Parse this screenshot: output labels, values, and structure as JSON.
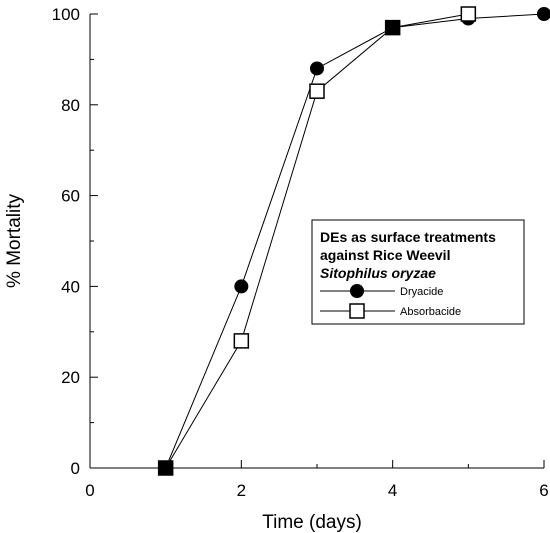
{
  "chart_data": {
    "type": "line",
    "xlabel": "Time (days)",
    "ylabel": "% Mortality",
    "xlim": [
      0,
      6
    ],
    "ylim": [
      0,
      100
    ],
    "x_ticks": [
      0,
      2,
      4,
      6
    ],
    "y_ticks": [
      0,
      20,
      40,
      60,
      80,
      100
    ],
    "grid": false,
    "legend": {
      "placement": "right-middle",
      "title_lines": [
        "DEs as surface treatments",
        "against Rice Weevil"
      ],
      "title_italic": "Sitophilus oryzae"
    },
    "series": [
      {
        "name": "Dryacide",
        "marker": "filled-circle",
        "color": "#000000",
        "points": [
          {
            "x": 1,
            "y": 0
          },
          {
            "x": 2,
            "y": 40
          },
          {
            "x": 3,
            "y": 88
          },
          {
            "x": 4,
            "y": 97
          },
          {
            "x": 5,
            "y": 99
          },
          {
            "x": 6,
            "y": 100
          }
        ]
      },
      {
        "name": "Absorbacide",
        "marker": "open-square",
        "color": "#000000",
        "points": [
          {
            "x": 1,
            "y": 0
          },
          {
            "x": 2,
            "y": 28
          },
          {
            "x": 3,
            "y": 83
          },
          {
            "x": 4,
            "y": 97
          },
          {
            "x": 5,
            "y": 100
          }
        ]
      }
    ]
  }
}
